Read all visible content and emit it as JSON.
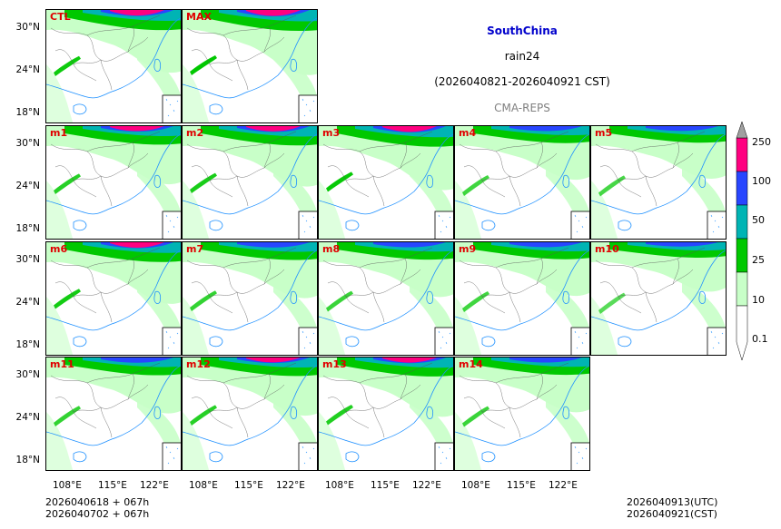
{
  "title": {
    "region": "SouthChina",
    "variable": "rain24",
    "period": "(2026040821-2026040921 CST)",
    "model": "CMA-REPS"
  },
  "panels": [
    "CTL",
    "MAX",
    "m1",
    "m2",
    "m3",
    "m4",
    "m5",
    "m6",
    "m7",
    "m8",
    "m9",
    "m10",
    "m11",
    "m12",
    "m13",
    "m14"
  ],
  "axes": {
    "lat_labels": [
      "30°N",
      "24°N",
      "18°N"
    ],
    "lon_labels": [
      "108°E",
      "115°E",
      "122°E"
    ]
  },
  "colorbar": {
    "levels": [
      "0.1",
      "10",
      "25",
      "50",
      "100",
      "250"
    ],
    "colors": [
      "#c8ffc8",
      "#00c800",
      "#00b4b4",
      "#2846ff",
      "#ff0080",
      "#a0a0a0"
    ]
  },
  "footer": {
    "init_line1": "2026040618  +  067h",
    "init_line2": "2026040702  +  067h",
    "valid_utc": "2026040913(UTC)",
    "valid_cst": "2026040921(CST)"
  }
}
